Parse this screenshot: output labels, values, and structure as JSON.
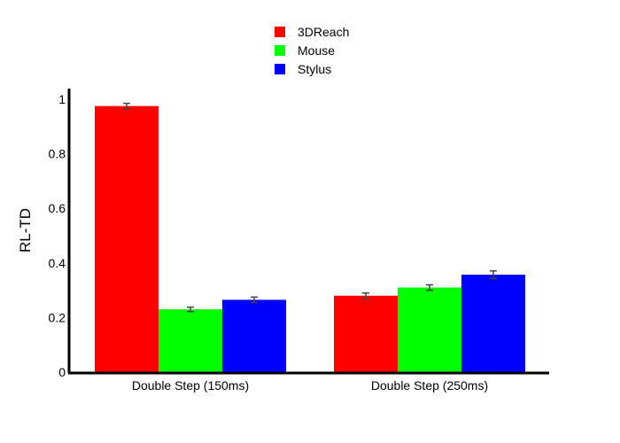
{
  "chart_data": {
    "type": "bar",
    "categories": [
      "Double Step (150ms)",
      "Double Step (250ms)"
    ],
    "series": [
      {
        "name": "3DReach",
        "color": "#ff0000",
        "values": [
          0.975,
          0.28
        ],
        "errors": [
          0.01,
          0.01
        ]
      },
      {
        "name": "Mouse",
        "color": "#00ff00",
        "values": [
          0.23,
          0.31
        ],
        "errors": [
          0.008,
          0.01
        ]
      },
      {
        "name": "Stylus",
        "color": "#0000ff",
        "values": [
          0.265,
          0.357
        ],
        "errors": [
          0.01,
          0.014
        ]
      }
    ],
    "ylabel": "RL-TD",
    "xlabel": "",
    "ylim": [
      0,
      1
    ],
    "yticks": [
      "0",
      "0.2",
      "0.4",
      "0.6",
      "0.8",
      "1"
    ],
    "legend_position": "top-center",
    "grid": false
  }
}
